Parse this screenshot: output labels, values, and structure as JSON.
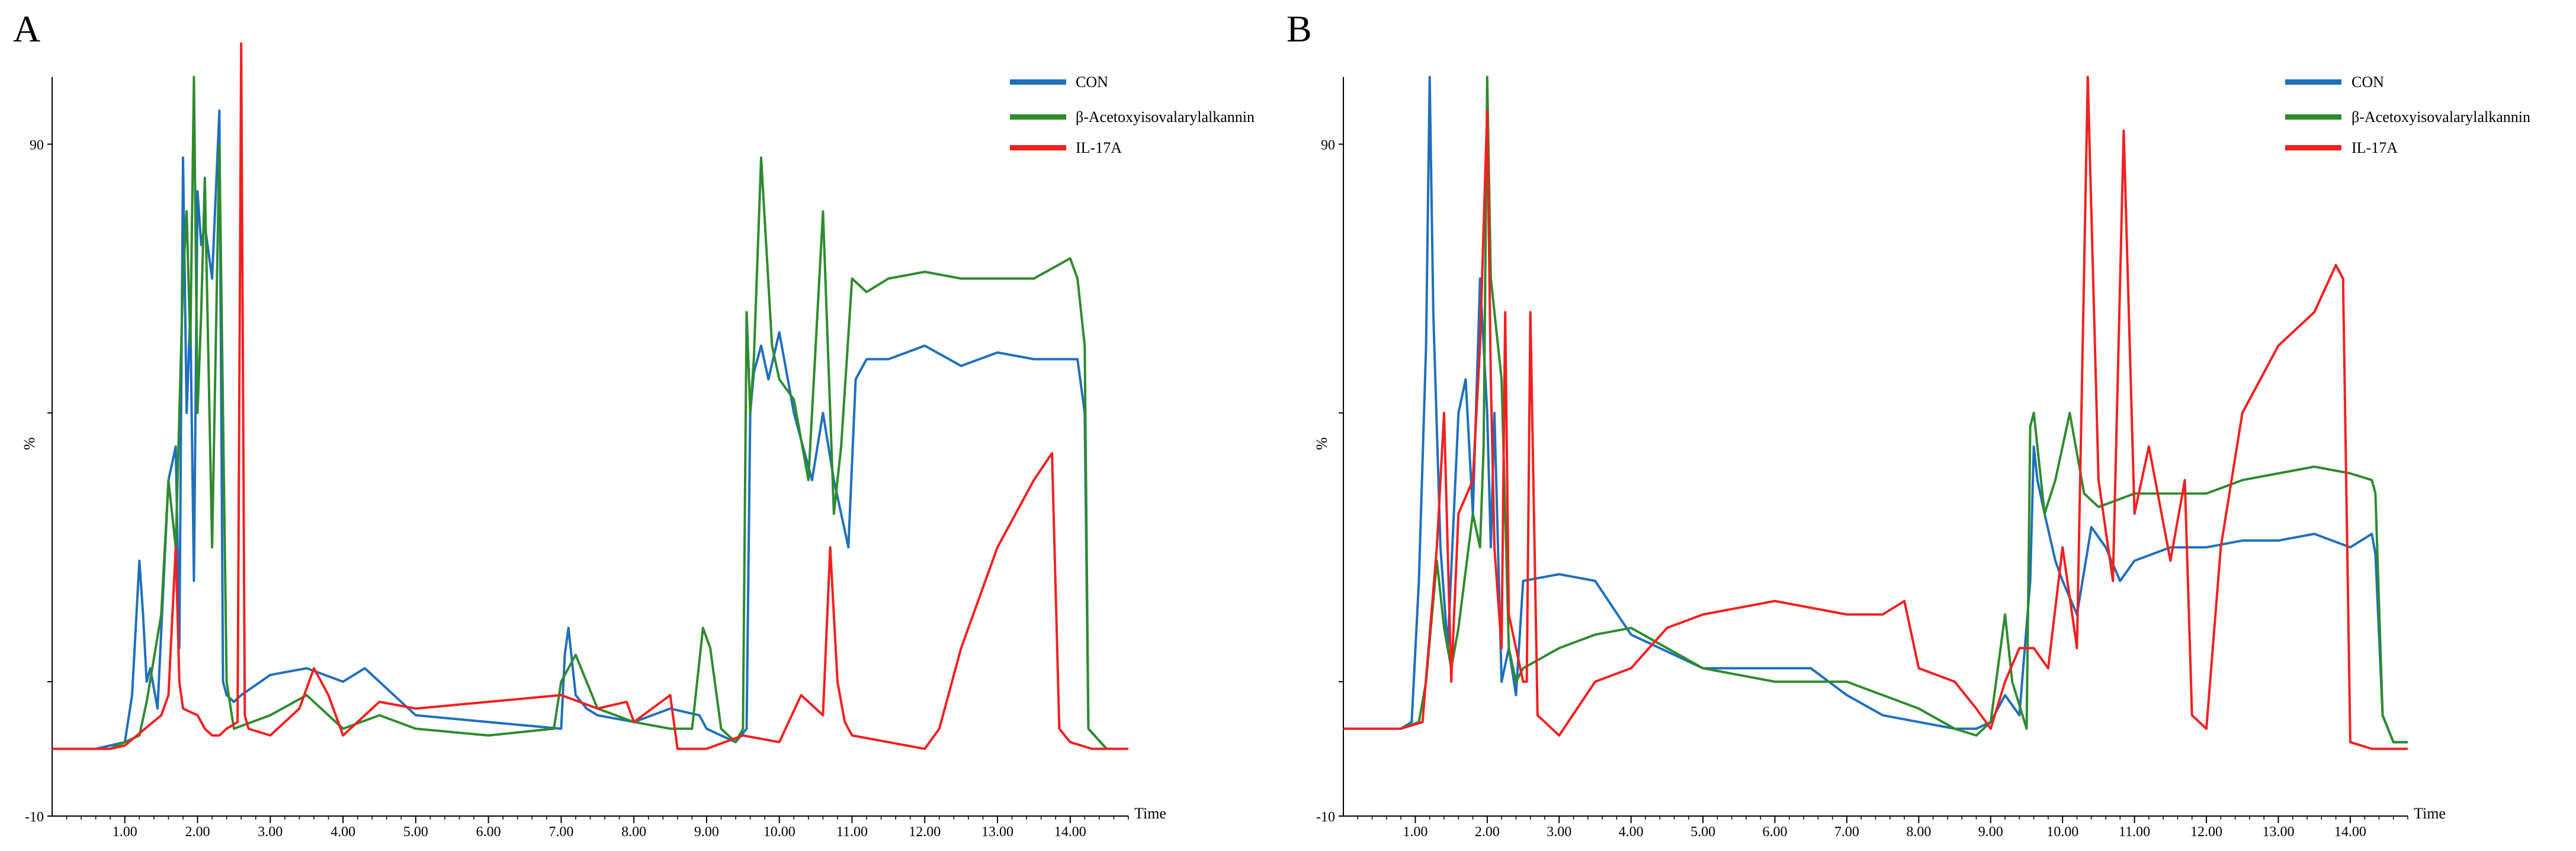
{
  "chart_data": [
    {
      "type": "line",
      "panel": "A",
      "xlabel": "Time",
      "ylabel": "%",
      "xlim": [
        0.0,
        14.8
      ],
      "ylim": [
        -10,
        100
      ],
      "x_ticks": [
        1.0,
        2.0,
        3.0,
        4.0,
        5.0,
        6.0,
        7.0,
        8.0,
        9.0,
        10.0,
        11.0,
        12.0,
        13.0,
        14.0
      ],
      "x_tick_labels": [
        "1.00",
        "2.00",
        "3.00",
        "4.00",
        "5.00",
        "6.00",
        "7.00",
        "8.00",
        "9.00",
        "10.00",
        "11.00",
        "12.00",
        "13.00",
        "14.00"
      ],
      "y_tick_labels": [
        {
          "value": 90,
          "label": "90"
        },
        {
          "value": -10,
          "label": "-10"
        }
      ],
      "legend": [
        "CON",
        "β-Acetoxyisovalarylalkannin",
        "IL-17A"
      ],
      "series": [
        {
          "name": "CON",
          "color": "#1f6fbd",
          "x": [
            0.0,
            0.6,
            1.0,
            1.1,
            1.2,
            1.25,
            1.3,
            1.35,
            1.45,
            1.6,
            1.7,
            1.75,
            1.8,
            1.85,
            1.9,
            1.95,
            2.0,
            2.05,
            2.1,
            2.2,
            2.3,
            2.35,
            2.4,
            2.5,
            2.6,
            3.0,
            3.5,
            4.0,
            4.3,
            4.7,
            5.0,
            6.0,
            7.0,
            7.05,
            7.1,
            7.2,
            7.35,
            7.5,
            8.0,
            8.5,
            8.9,
            9.0,
            9.2,
            9.4,
            9.55,
            9.6,
            9.65,
            9.75,
            9.85,
            10.0,
            10.2,
            10.45,
            10.6,
            10.75,
            10.85,
            10.95,
            11.05,
            11.2,
            11.5,
            12.0,
            12.5,
            13.0,
            13.5,
            14.0,
            14.1,
            14.2,
            14.25,
            14.5,
            14.8
          ],
          "y": [
            0,
            0,
            1,
            8,
            28,
            20,
            10,
            12,
            6,
            40,
            45,
            15,
            88,
            50,
            65,
            25,
            83,
            75,
            78,
            70,
            95,
            10,
            8,
            7,
            8,
            11,
            12,
            10,
            12,
            8,
            5,
            4,
            3,
            14,
            18,
            8,
            6,
            5,
            4,
            6,
            5,
            3,
            2,
            1,
            3,
            50,
            56,
            60,
            55,
            62,
            50,
            40,
            50,
            40,
            35,
            30,
            55,
            58,
            58,
            60,
            57,
            59,
            58,
            58,
            58,
            50,
            3,
            0,
            0
          ]
        },
        {
          "name": "β-Acetoxyisovalarylalkannin",
          "color": "#2e8b2e",
          "x": [
            0.0,
            0.8,
            1.2,
            1.3,
            1.5,
            1.6,
            1.7,
            1.8,
            1.85,
            1.9,
            1.95,
            2.0,
            2.05,
            2.1,
            2.2,
            2.3,
            2.4,
            2.5,
            3.0,
            3.5,
            4.0,
            4.5,
            5.0,
            6.0,
            6.9,
            7.0,
            7.2,
            7.5,
            8.0,
            8.5,
            8.8,
            8.95,
            9.05,
            9.2,
            9.4,
            9.5,
            9.55,
            9.6,
            9.65,
            9.75,
            9.9,
            10.0,
            10.2,
            10.4,
            10.6,
            10.75,
            10.85,
            11.0,
            11.2,
            11.5,
            12.0,
            12.5,
            13.0,
            13.5,
            14.0,
            14.1,
            14.2,
            14.25,
            14.5,
            14.8
          ],
          "y": [
            0,
            0,
            2,
            7,
            20,
            40,
            30,
            70,
            80,
            60,
            100,
            50,
            65,
            85,
            30,
            90,
            10,
            3,
            5,
            8,
            3,
            5,
            3,
            2,
            3,
            10,
            14,
            6,
            4,
            3,
            3,
            18,
            15,
            3,
            1,
            3,
            65,
            50,
            58,
            88,
            60,
            55,
            52,
            40,
            80,
            35,
            45,
            70,
            68,
            70,
            71,
            70,
            70,
            70,
            73,
            70,
            60,
            3,
            0,
            0
          ]
        },
        {
          "name": "IL-17A",
          "color": "#f22020",
          "x": [
            0.0,
            0.8,
            1.0,
            1.5,
            1.6,
            1.7,
            1.75,
            1.8,
            2.0,
            2.1,
            2.2,
            2.3,
            2.4,
            2.55,
            2.6,
            2.65,
            2.7,
            3.0,
            3.4,
            3.6,
            3.8,
            4.0,
            4.5,
            5.0,
            6.0,
            7.0,
            7.5,
            7.9,
            8.0,
            8.5,
            8.6,
            9.0,
            9.5,
            10.0,
            10.3,
            10.6,
            10.7,
            10.8,
            10.9,
            11.0,
            11.5,
            12.0,
            12.2,
            12.5,
            13.0,
            13.5,
            13.75,
            13.85,
            14.0,
            14.3,
            14.6,
            14.8
          ],
          "y": [
            0,
            0,
            0.5,
            5,
            8,
            30,
            10,
            6,
            5,
            3,
            2,
            2,
            3,
            4,
            105,
            5,
            3,
            2,
            6,
            12,
            8,
            2,
            7,
            6,
            7,
            8,
            6,
            7,
            4,
            8,
            0,
            0,
            2,
            1,
            8,
            5,
            30,
            10,
            4,
            2,
            1,
            0,
            3,
            15,
            30,
            40,
            44,
            3,
            1,
            0,
            0,
            0
          ]
        }
      ]
    },
    {
      "type": "line",
      "panel": "B",
      "xlabel": "Time",
      "ylabel": "%",
      "xlim": [
        0.0,
        14.8
      ],
      "ylim": [
        -10,
        100
      ],
      "x_ticks": [
        1.0,
        2.0,
        3.0,
        4.0,
        5.0,
        6.0,
        7.0,
        8.0,
        9.0,
        10.0,
        11.0,
        12.0,
        13.0,
        14.0
      ],
      "x_tick_labels": [
        "1.00",
        "2.00",
        "3.00",
        "4.00",
        "5.00",
        "6.00",
        "7.00",
        "8.00",
        "9.00",
        "10.00",
        "11.00",
        "12.00",
        "13.00",
        "14.00"
      ],
      "y_tick_labels": [
        {
          "value": 90,
          "label": "90"
        },
        {
          "value": -10,
          "label": "-10"
        }
      ],
      "legend": [
        "CON",
        "β-Acetoxyisovalarylalkannin",
        "IL-17A"
      ],
      "series": [
        {
          "name": "CON",
          "color": "#1f6fbd",
          "x": [
            0.0,
            0.8,
            0.95,
            1.05,
            1.15,
            1.2,
            1.25,
            1.35,
            1.45,
            1.6,
            1.7,
            1.8,
            1.9,
            2.0,
            2.05,
            2.1,
            2.2,
            2.3,
            2.4,
            2.5,
            3.0,
            3.5,
            4.0,
            5.0,
            6.0,
            6.5,
            7.0,
            7.5,
            8.0,
            8.5,
            8.8,
            9.0,
            9.2,
            9.4,
            9.55,
            9.6,
            9.65,
            9.75,
            9.9,
            10.0,
            10.2,
            10.4,
            10.6,
            10.8,
            11.0,
            11.5,
            12.0,
            12.5,
            13.0,
            13.5,
            14.0,
            14.3,
            14.35,
            14.45,
            14.6,
            14.8
          ],
          "y": [
            3,
            3,
            4,
            25,
            60,
            100,
            65,
            30,
            15,
            50,
            55,
            35,
            70,
            50,
            30,
            50,
            10,
            15,
            8,
            25,
            26,
            25,
            17,
            12,
            12,
            12,
            8,
            5,
            4,
            3,
            3,
            4,
            8,
            5,
            25,
            45,
            40,
            35,
            28,
            25,
            20,
            33,
            30,
            25,
            28,
            30,
            30,
            31,
            31,
            32,
            30,
            32,
            29,
            5,
            1,
            1
          ]
        },
        {
          "name": "β-Acetoxyisovalarylalkannin",
          "color": "#2e8b2e",
          "x": [
            0.0,
            0.8,
            1.05,
            1.15,
            1.3,
            1.4,
            1.5,
            1.6,
            1.8,
            1.9,
            1.95,
            2.0,
            2.05,
            2.1,
            2.2,
            2.3,
            2.4,
            2.5,
            3.0,
            3.5,
            4.0,
            5.0,
            6.0,
            7.0,
            7.5,
            8.0,
            8.5,
            8.8,
            9.0,
            9.2,
            9.3,
            9.5,
            9.55,
            9.6,
            9.65,
            9.75,
            9.9,
            10.1,
            10.3,
            10.5,
            11.0,
            11.5,
            12.0,
            12.5,
            13.0,
            13.5,
            14.0,
            14.3,
            14.35,
            14.45,
            14.6,
            14.8
          ],
          "y": [
            3,
            3,
            4,
            10,
            28,
            18,
            12,
            18,
            35,
            30,
            45,
            100,
            70,
            65,
            55,
            15,
            10,
            12,
            15,
            17,
            18,
            12,
            10,
            10,
            8,
            6,
            3,
            2,
            4,
            20,
            10,
            3,
            48,
            50,
            45,
            35,
            40,
            50,
            38,
            36,
            38,
            38,
            38,
            40,
            41,
            42,
            41,
            40,
            38,
            5,
            1,
            1
          ]
        },
        {
          "name": "IL-17A",
          "color": "#f22020",
          "x": [
            0.0,
            0.8,
            1.1,
            1.3,
            1.4,
            1.5,
            1.6,
            1.8,
            1.9,
            2.0,
            2.05,
            2.1,
            2.2,
            2.25,
            2.3,
            2.4,
            2.5,
            2.55,
            2.6,
            2.7,
            3.0,
            3.5,
            4.0,
            4.5,
            5.0,
            6.0,
            7.0,
            7.5,
            7.8,
            8.0,
            8.5,
            8.8,
            9.0,
            9.2,
            9.4,
            9.6,
            9.8,
            10.0,
            10.2,
            10.35,
            10.5,
            10.7,
            10.85,
            11.0,
            11.2,
            11.5,
            11.7,
            11.8,
            12.0,
            12.2,
            12.5,
            13.0,
            13.5,
            13.8,
            13.9,
            14.0,
            14.3,
            14.6,
            14.8
          ],
          "y": [
            3,
            3,
            4,
            30,
            50,
            10,
            35,
            40,
            60,
            95,
            55,
            30,
            15,
            65,
            20,
            15,
            10,
            10,
            65,
            5,
            2,
            10,
            12,
            18,
            20,
            22,
            20,
            20,
            22,
            12,
            10,
            6,
            3,
            10,
            15,
            15,
            12,
            30,
            15,
            100,
            40,
            25,
            92,
            35,
            45,
            28,
            40,
            5,
            3,
            30,
            50,
            60,
            65,
            72,
            70,
            1,
            0,
            0,
            0
          ]
        }
      ]
    }
  ]
}
